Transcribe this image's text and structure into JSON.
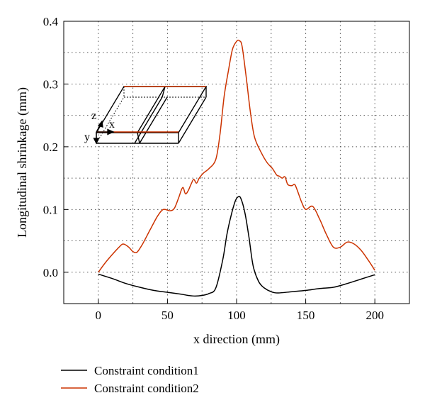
{
  "chart_data": {
    "type": "line",
    "xlabel": "x direction (mm)",
    "ylabel": "Longitudinal shrinkage (mm)",
    "xlim": [
      -25,
      225
    ],
    "ylim": [
      -0.05,
      0.4
    ],
    "xticks": [
      0,
      50,
      100,
      150,
      200
    ],
    "yticks": [
      0.0,
      0.1,
      0.2,
      0.3,
      0.4
    ],
    "xtick_labels": [
      "0",
      "50",
      "100",
      "150",
      "200"
    ],
    "ytick_labels": [
      "0.0",
      "0.1",
      "0.2",
      "0.3",
      "0.4"
    ],
    "grid": true,
    "legend_position": "bottom-left-outside",
    "inset_axis_labels": [
      "z",
      "x",
      "y"
    ],
    "series": [
      {
        "name": "Constraint condition1",
        "color": "#000000",
        "points": [
          [
            0,
            -0.003
          ],
          [
            10,
            -0.01
          ],
          [
            20,
            -0.018
          ],
          [
            30,
            -0.024
          ],
          [
            40,
            -0.029
          ],
          [
            50,
            -0.032
          ],
          [
            60,
            -0.035
          ],
          [
            65,
            -0.037
          ],
          [
            70,
            -0.038
          ],
          [
            75,
            -0.037
          ],
          [
            80,
            -0.034
          ],
          [
            85,
            -0.025
          ],
          [
            90,
            0.02
          ],
          [
            93,
            0.06
          ],
          [
            96,
            0.09
          ],
          [
            99,
            0.113
          ],
          [
            101,
            0.12
          ],
          [
            103,
            0.118
          ],
          [
            106,
            0.095
          ],
          [
            109,
            0.055
          ],
          [
            112,
            0.01
          ],
          [
            116,
            -0.015
          ],
          [
            120,
            -0.025
          ],
          [
            125,
            -0.031
          ],
          [
            130,
            -0.033
          ],
          [
            140,
            -0.031
          ],
          [
            150,
            -0.029
          ],
          [
            160,
            -0.026
          ],
          [
            170,
            -0.024
          ],
          [
            180,
            -0.018
          ],
          [
            190,
            -0.011
          ],
          [
            200,
            -0.004
          ]
        ]
      },
      {
        "name": "Constraint condition2",
        "color": "#cc3300",
        "points": [
          [
            0,
            0.0
          ],
          [
            5,
            0.015
          ],
          [
            10,
            0.028
          ],
          [
            15,
            0.04
          ],
          [
            18,
            0.045
          ],
          [
            22,
            0.04
          ],
          [
            25,
            0.033
          ],
          [
            28,
            0.032
          ],
          [
            32,
            0.045
          ],
          [
            38,
            0.07
          ],
          [
            43,
            0.09
          ],
          [
            47,
            0.1
          ],
          [
            52,
            0.098
          ],
          [
            55,
            0.102
          ],
          [
            58,
            0.118
          ],
          [
            61,
            0.135
          ],
          [
            63,
            0.125
          ],
          [
            65,
            0.13
          ],
          [
            67,
            0.14
          ],
          [
            69,
            0.148
          ],
          [
            71,
            0.142
          ],
          [
            73,
            0.15
          ],
          [
            76,
            0.158
          ],
          [
            80,
            0.165
          ],
          [
            85,
            0.18
          ],
          [
            88,
            0.22
          ],
          [
            91,
            0.28
          ],
          [
            94,
            0.32
          ],
          [
            97,
            0.355
          ],
          [
            100,
            0.368
          ],
          [
            102,
            0.369
          ],
          [
            104,
            0.36
          ],
          [
            107,
            0.31
          ],
          [
            110,
            0.255
          ],
          [
            113,
            0.215
          ],
          [
            118,
            0.19
          ],
          [
            122,
            0.175
          ],
          [
            126,
            0.165
          ],
          [
            129,
            0.155
          ],
          [
            131,
            0.153
          ],
          [
            133,
            0.15
          ],
          [
            135,
            0.152
          ],
          [
            137,
            0.14
          ],
          [
            140,
            0.138
          ],
          [
            142,
            0.14
          ],
          [
            144,
            0.13
          ],
          [
            147,
            0.112
          ],
          [
            150,
            0.1
          ],
          [
            155,
            0.105
          ],
          [
            160,
            0.085
          ],
          [
            165,
            0.06
          ],
          [
            170,
            0.04
          ],
          [
            175,
            0.04
          ],
          [
            180,
            0.048
          ],
          [
            185,
            0.045
          ],
          [
            190,
            0.035
          ],
          [
            195,
            0.02
          ],
          [
            200,
            0.003
          ]
        ]
      }
    ]
  }
}
